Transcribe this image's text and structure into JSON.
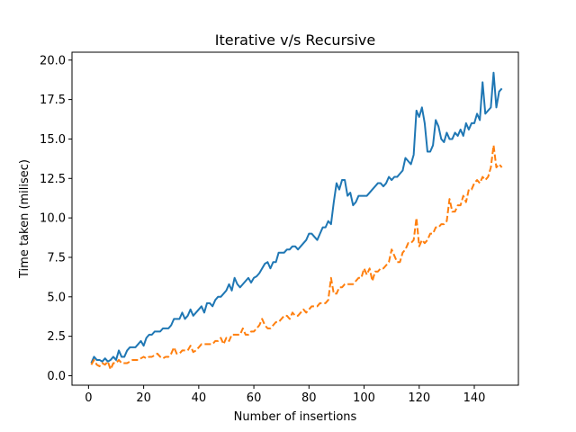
{
  "chart_data": {
    "type": "line",
    "title": "Iterative v/s Recursive",
    "xlabel": "Number of insertions",
    "ylabel": "Time taken (milisec)",
    "xlim": [
      -6,
      156
    ],
    "ylim": [
      -0.6,
      20.5
    ],
    "xticks": [
      0,
      20,
      40,
      60,
      80,
      100,
      120,
      140
    ],
    "yticks": [
      0.0,
      2.5,
      5.0,
      7.5,
      10.0,
      12.5,
      15.0,
      17.5,
      20.0
    ],
    "ytick_labels": [
      "0.0",
      "2.5",
      "5.0",
      "7.5",
      "10.0",
      "12.5",
      "15.0",
      "17.5",
      "20.0"
    ],
    "grid": false,
    "legend": "none",
    "series": [
      {
        "color": "#1f77b4",
        "linestyle": "solid",
        "points": [
          [
            1,
            0.8
          ],
          [
            2,
            1.2
          ],
          [
            3,
            1.0
          ],
          [
            4,
            1.0
          ],
          [
            5,
            0.9
          ],
          [
            6,
            1.1
          ],
          [
            7,
            0.9
          ],
          [
            8,
            1.0
          ],
          [
            9,
            1.2
          ],
          [
            10,
            1.0
          ],
          [
            11,
            1.6
          ],
          [
            12,
            1.2
          ],
          [
            13,
            1.2
          ],
          [
            14,
            1.6
          ],
          [
            15,
            1.8
          ],
          [
            16,
            1.8
          ],
          [
            17,
            1.8
          ],
          [
            18,
            2.0
          ],
          [
            19,
            2.2
          ],
          [
            20,
            1.9
          ],
          [
            21,
            2.4
          ],
          [
            22,
            2.6
          ],
          [
            23,
            2.6
          ],
          [
            24,
            2.8
          ],
          [
            25,
            2.8
          ],
          [
            26,
            2.8
          ],
          [
            27,
            3.0
          ],
          [
            28,
            3.0
          ],
          [
            29,
            3.0
          ],
          [
            30,
            3.2
          ],
          [
            31,
            3.6
          ],
          [
            32,
            3.6
          ],
          [
            33,
            3.6
          ],
          [
            34,
            4.0
          ],
          [
            35,
            3.6
          ],
          [
            36,
            3.8
          ],
          [
            37,
            4.2
          ],
          [
            38,
            3.8
          ],
          [
            39,
            4.0
          ],
          [
            40,
            4.2
          ],
          [
            41,
            4.4
          ],
          [
            42,
            4.0
          ],
          [
            43,
            4.6
          ],
          [
            44,
            4.6
          ],
          [
            45,
            4.4
          ],
          [
            46,
            4.8
          ],
          [
            47,
            5.0
          ],
          [
            48,
            5.0
          ],
          [
            49,
            5.2
          ],
          [
            50,
            5.4
          ],
          [
            51,
            5.8
          ],
          [
            52,
            5.4
          ],
          [
            53,
            6.2
          ],
          [
            54,
            5.8
          ],
          [
            55,
            5.6
          ],
          [
            56,
            5.8
          ],
          [
            57,
            6.0
          ],
          [
            58,
            6.2
          ],
          [
            59,
            5.9
          ],
          [
            60,
            6.2
          ],
          [
            61,
            6.3
          ],
          [
            62,
            6.5
          ],
          [
            63,
            6.8
          ],
          [
            64,
            7.1
          ],
          [
            65,
            7.2
          ],
          [
            66,
            6.8
          ],
          [
            67,
            7.2
          ],
          [
            68,
            7.2
          ],
          [
            69,
            7.8
          ],
          [
            70,
            7.8
          ],
          [
            71,
            7.8
          ],
          [
            72,
            8.0
          ],
          [
            73,
            8.0
          ],
          [
            74,
            8.2
          ],
          [
            75,
            8.2
          ],
          [
            76,
            8.0
          ],
          [
            77,
            8.2
          ],
          [
            78,
            8.4
          ],
          [
            79,
            8.6
          ],
          [
            80,
            9.0
          ],
          [
            81,
            9.0
          ],
          [
            82,
            8.8
          ],
          [
            83,
            8.6
          ],
          [
            84,
            9.0
          ],
          [
            85,
            9.4
          ],
          [
            86,
            9.4
          ],
          [
            87,
            9.8
          ],
          [
            88,
            9.6
          ],
          [
            89,
            11.0
          ],
          [
            90,
            12.2
          ],
          [
            91,
            11.8
          ],
          [
            92,
            12.4
          ],
          [
            93,
            12.4
          ],
          [
            94,
            11.4
          ],
          [
            95,
            11.6
          ],
          [
            96,
            10.8
          ],
          [
            97,
            11.0
          ],
          [
            98,
            11.4
          ],
          [
            99,
            11.4
          ],
          [
            100,
            11.4
          ],
          [
            101,
            11.4
          ],
          [
            102,
            11.6
          ],
          [
            103,
            11.8
          ],
          [
            104,
            12.0
          ],
          [
            105,
            12.2
          ],
          [
            106,
            12.2
          ],
          [
            107,
            12.0
          ],
          [
            108,
            12.2
          ],
          [
            109,
            12.6
          ],
          [
            110,
            12.4
          ],
          [
            111,
            12.6
          ],
          [
            112,
            12.6
          ],
          [
            113,
            12.8
          ],
          [
            114,
            13.0
          ],
          [
            115,
            13.8
          ],
          [
            116,
            13.6
          ],
          [
            117,
            13.4
          ],
          [
            118,
            14.0
          ],
          [
            119,
            16.8
          ],
          [
            120,
            16.4
          ],
          [
            121,
            17.0
          ],
          [
            122,
            16.0
          ],
          [
            123,
            14.2
          ],
          [
            124,
            14.2
          ],
          [
            125,
            14.6
          ],
          [
            126,
            16.2
          ],
          [
            127,
            15.8
          ],
          [
            128,
            15.0
          ],
          [
            129,
            14.8
          ],
          [
            130,
            15.4
          ],
          [
            131,
            15.0
          ],
          [
            132,
            15.0
          ],
          [
            133,
            15.4
          ],
          [
            134,
            15.2
          ],
          [
            135,
            15.6
          ],
          [
            136,
            15.2
          ],
          [
            137,
            16.0
          ],
          [
            138,
            15.6
          ],
          [
            139,
            16.0
          ],
          [
            140,
            16.0
          ],
          [
            141,
            16.6
          ],
          [
            142,
            16.2
          ],
          [
            143,
            18.6
          ],
          [
            144,
            16.6
          ],
          [
            145,
            16.8
          ],
          [
            146,
            17.0
          ],
          [
            147,
            19.2
          ],
          [
            148,
            17.0
          ],
          [
            149,
            18.0
          ],
          [
            150,
            18.2
          ]
        ]
      },
      {
        "color": "#ff7f0e",
        "linestyle": "dashed",
        "points": [
          [
            1,
            0.7
          ],
          [
            2,
            1.0
          ],
          [
            3,
            0.7
          ],
          [
            4,
            0.6
          ],
          [
            5,
            0.8
          ],
          [
            6,
            0.7
          ],
          [
            7,
            0.9
          ],
          [
            8,
            0.4
          ],
          [
            9,
            0.8
          ],
          [
            10,
            0.8
          ],
          [
            11,
            1.0
          ],
          [
            12,
            0.8
          ],
          [
            13,
            0.8
          ],
          [
            14,
            0.8
          ],
          [
            15,
            0.9
          ],
          [
            16,
            1.0
          ],
          [
            17,
            1.0
          ],
          [
            18,
            1.0
          ],
          [
            19,
            1.1
          ],
          [
            20,
            1.2
          ],
          [
            21,
            1.1
          ],
          [
            22,
            1.2
          ],
          [
            23,
            1.2
          ],
          [
            24,
            1.3
          ],
          [
            25,
            1.4
          ],
          [
            26,
            1.2
          ],
          [
            27,
            1.1
          ],
          [
            28,
            1.2
          ],
          [
            29,
            1.2
          ],
          [
            30,
            1.4
          ],
          [
            31,
            1.8
          ],
          [
            32,
            1.4
          ],
          [
            33,
            1.4
          ],
          [
            34,
            1.6
          ],
          [
            35,
            1.6
          ],
          [
            36,
            1.6
          ],
          [
            37,
            1.9
          ],
          [
            38,
            1.5
          ],
          [
            39,
            1.6
          ],
          [
            40,
            1.8
          ],
          [
            41,
            2.0
          ],
          [
            42,
            2.0
          ],
          [
            43,
            2.0
          ],
          [
            44,
            2.0
          ],
          [
            45,
            2.0
          ],
          [
            46,
            2.2
          ],
          [
            47,
            2.2
          ],
          [
            48,
            2.4
          ],
          [
            49,
            2.0
          ],
          [
            50,
            2.4
          ],
          [
            51,
            2.2
          ],
          [
            52,
            2.6
          ],
          [
            53,
            2.6
          ],
          [
            54,
            2.6
          ],
          [
            55,
            2.6
          ],
          [
            56,
            3.0
          ],
          [
            57,
            2.6
          ],
          [
            58,
            2.6
          ],
          [
            59,
            2.8
          ],
          [
            60,
            2.8
          ],
          [
            61,
            3.0
          ],
          [
            62,
            3.2
          ],
          [
            63,
            3.6
          ],
          [
            64,
            3.2
          ],
          [
            65,
            3.0
          ],
          [
            66,
            3.0
          ],
          [
            67,
            3.2
          ],
          [
            68,
            3.4
          ],
          [
            69,
            3.4
          ],
          [
            70,
            3.6
          ],
          [
            71,
            3.8
          ],
          [
            72,
            3.8
          ],
          [
            73,
            3.6
          ],
          [
            74,
            4.0
          ],
          [
            75,
            3.8
          ],
          [
            76,
            3.8
          ],
          [
            77,
            4.0
          ],
          [
            78,
            4.2
          ],
          [
            79,
            4.0
          ],
          [
            80,
            4.2
          ],
          [
            81,
            4.4
          ],
          [
            82,
            4.4
          ],
          [
            83,
            4.4
          ],
          [
            84,
            4.6
          ],
          [
            85,
            4.6
          ],
          [
            86,
            4.6
          ],
          [
            87,
            4.8
          ],
          [
            88,
            6.2
          ],
          [
            89,
            5.2
          ],
          [
            90,
            5.2
          ],
          [
            91,
            5.6
          ],
          [
            92,
            5.6
          ],
          [
            93,
            5.8
          ],
          [
            94,
            5.8
          ],
          [
            95,
            5.8
          ],
          [
            96,
            5.8
          ],
          [
            97,
            6.0
          ],
          [
            98,
            6.2
          ],
          [
            99,
            6.2
          ],
          [
            100,
            6.8
          ],
          [
            101,
            6.4
          ],
          [
            102,
            6.8
          ],
          [
            103,
            6.0
          ],
          [
            104,
            6.6
          ],
          [
            105,
            6.6
          ],
          [
            106,
            6.8
          ],
          [
            107,
            6.8
          ],
          [
            108,
            7.0
          ],
          [
            109,
            7.2
          ],
          [
            110,
            8.0
          ],
          [
            111,
            7.6
          ],
          [
            112,
            7.2
          ],
          [
            113,
            7.2
          ],
          [
            114,
            7.8
          ],
          [
            115,
            8.0
          ],
          [
            116,
            8.4
          ],
          [
            117,
            8.4
          ],
          [
            118,
            8.6
          ],
          [
            119,
            10.0
          ],
          [
            120,
            8.2
          ],
          [
            121,
            8.6
          ],
          [
            122,
            8.4
          ],
          [
            123,
            8.6
          ],
          [
            124,
            9.0
          ],
          [
            125,
            9.0
          ],
          [
            126,
            9.4
          ],
          [
            127,
            9.4
          ],
          [
            128,
            9.6
          ],
          [
            129,
            9.6
          ],
          [
            130,
            9.8
          ],
          [
            131,
            11.2
          ],
          [
            132,
            10.4
          ],
          [
            133,
            10.4
          ],
          [
            134,
            10.8
          ],
          [
            135,
            10.8
          ],
          [
            136,
            11.4
          ],
          [
            137,
            11.0
          ],
          [
            138,
            11.8
          ],
          [
            139,
            11.8
          ],
          [
            140,
            12.2
          ],
          [
            141,
            12.4
          ],
          [
            142,
            12.2
          ],
          [
            143,
            12.6
          ],
          [
            144,
            12.4
          ],
          [
            145,
            12.6
          ],
          [
            146,
            13.2
          ],
          [
            147,
            14.6
          ],
          [
            148,
            13.2
          ],
          [
            149,
            13.4
          ],
          [
            150,
            13.2
          ]
        ]
      }
    ]
  }
}
